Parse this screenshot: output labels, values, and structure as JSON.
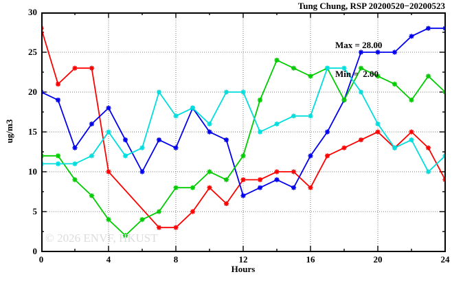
{
  "title": "Tung Chung, RSP 20200520−20200523",
  "legend": {
    "max_label": "Max = 28.00",
    "min_label": "Min =  2.00"
  },
  "watermark": "© 2026 ENVF, HKUST",
  "axes": {
    "ylabel": "ug/m3",
    "xlabel": "Hours"
  },
  "chart_data": {
    "type": "line",
    "title": "Tung Chung, RSP 20200520−20200523",
    "xlabel": "Hours",
    "ylabel": "ug/m3",
    "xlim": [
      0,
      24
    ],
    "ylim": [
      0,
      30
    ],
    "xticks_major": [
      0,
      4,
      8,
      12,
      16,
      20,
      24
    ],
    "xtick_minor_step": 2,
    "yticks_major": [
      0,
      5,
      10,
      15,
      20,
      25,
      30
    ],
    "ytick_minor_step": 2.5,
    "grid": true,
    "grid_style": "dotted",
    "legend_position": "top-right-inside",
    "annotations": {
      "max": "28.00",
      "min": "2.00"
    },
    "x": [
      0,
      1,
      2,
      3,
      4,
      5,
      6,
      7,
      8,
      9,
      10,
      11,
      12,
      13,
      14,
      15,
      16,
      17,
      18,
      19,
      20,
      21,
      22,
      23,
      24
    ],
    "series": [
      {
        "name": "series-red",
        "color": "#ff0000",
        "values": [
          28,
          21,
          23,
          23,
          10,
          null,
          null,
          3,
          3,
          5,
          8,
          6,
          9,
          9,
          10,
          10,
          8,
          12,
          13,
          14,
          15,
          13,
          15,
          13,
          9
        ]
      },
      {
        "name": "series-blue",
        "color": "#0000ee",
        "values": [
          20,
          19,
          13,
          16,
          18,
          14,
          10,
          14,
          13,
          18,
          15,
          14,
          7,
          8,
          9,
          8,
          12,
          15,
          19,
          25,
          25,
          25,
          27,
          28,
          28
        ]
      },
      {
        "name": "series-green",
        "color": "#00cc00",
        "values": [
          12,
          12,
          9,
          7,
          4,
          2,
          4,
          5,
          8,
          8,
          10,
          9,
          12,
          19,
          24,
          23,
          22,
          23,
          19,
          23,
          22,
          21,
          19,
          22,
          20
        ]
      },
      {
        "name": "series-cyan",
        "color": "#00dddd",
        "values": [
          11,
          11,
          11,
          12,
          15,
          12,
          13,
          20,
          17,
          18,
          16,
          20,
          20,
          15,
          16,
          17,
          17,
          23,
          23,
          20,
          16,
          13,
          14,
          10,
          12
        ]
      }
    ]
  }
}
